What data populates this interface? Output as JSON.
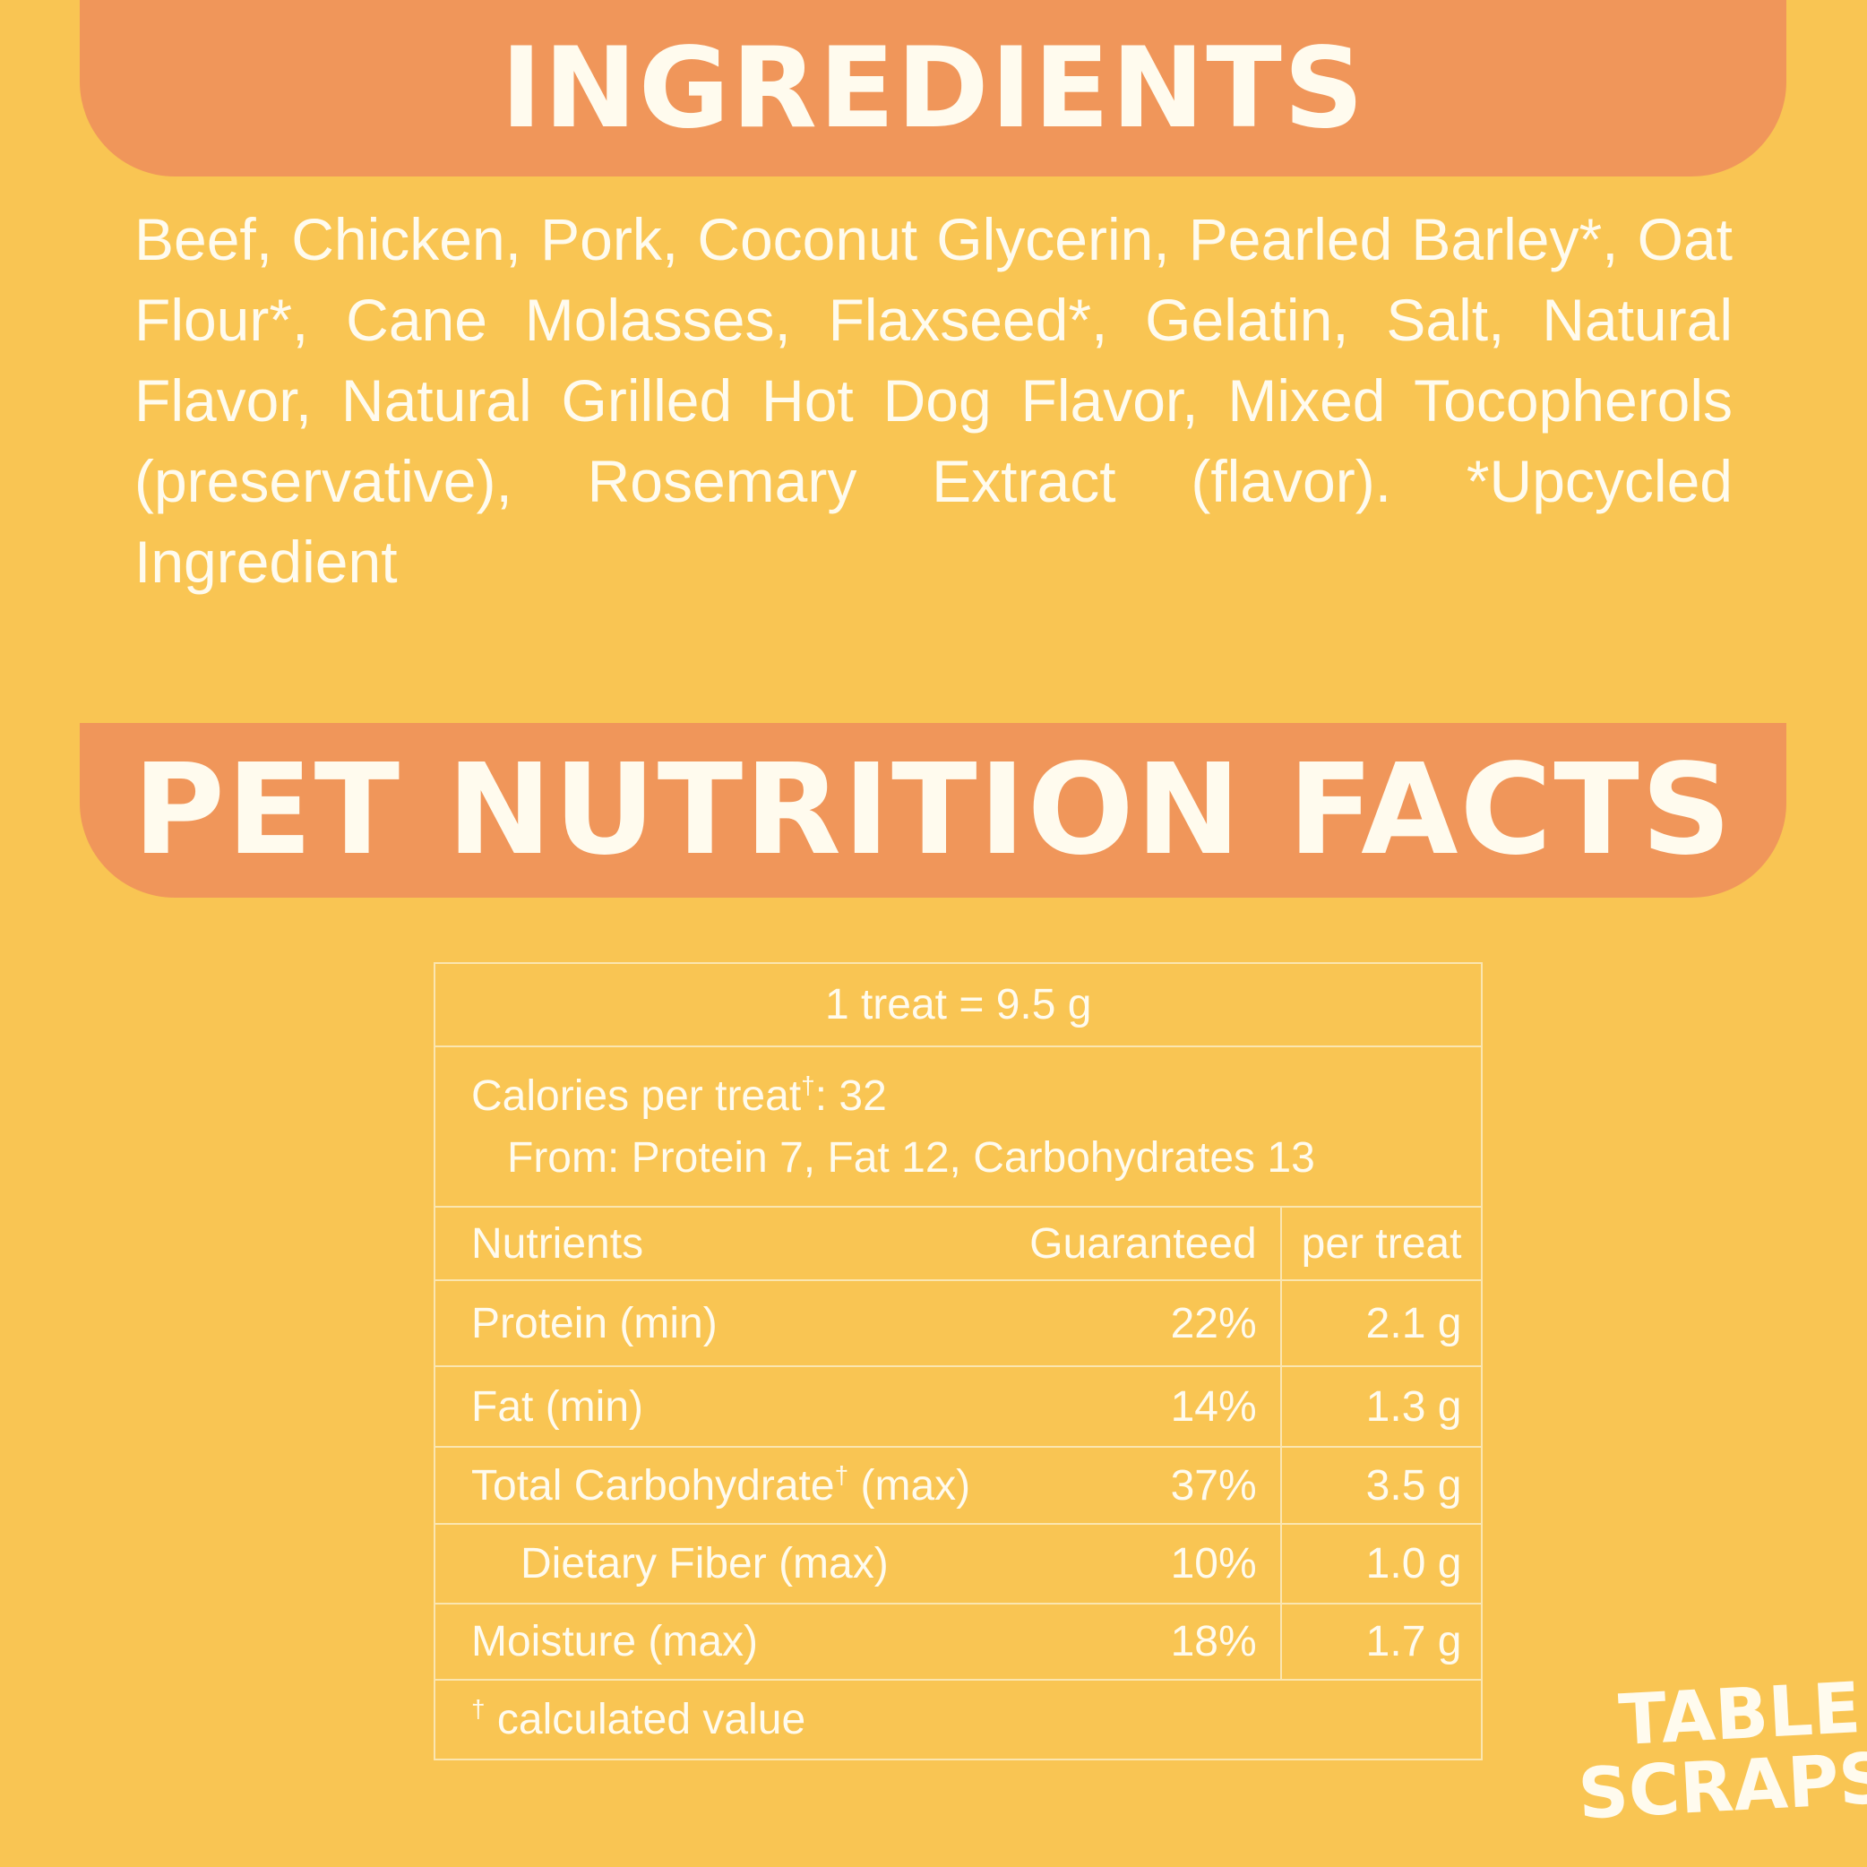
{
  "ingredients": {
    "title": "INGREDIENTS",
    "text": "Beef, Chicken, Pork, Coconut Glycerin, Pearled Barley*, Oat Flour*, Cane Molasses, Flaxseed*, Gelatin, Salt, Natural Flavor, Natural Grilled Hot Dog Flavor, Mixed Tocopherols (preservative), Rosemary Extract (flavor).  *Upcycled Ingredient"
  },
  "nutrition": {
    "title": "PET NUTRITION FACTS",
    "serving": "1 treat = 9.5 g",
    "calories": {
      "label": "Calories per treat",
      "note": "†",
      "value": ": 32"
    },
    "from": "From: Protein 7, Fat 12, Carbohydrates 13",
    "header": [
      "Nutrients",
      "Guaranteed",
      "per treat"
    ],
    "rows": [
      {
        "nutrient": "Protein (min)",
        "guaranteed": "22%",
        "per_treat": "2.1 g"
      },
      {
        "nutrient": "Fat (min)",
        "guaranteed": "14%",
        "per_treat": "1.3 g"
      },
      {
        "nutrient": "Total Carbohydrate",
        "note": "†",
        "qualifier": "(max)",
        "guaranteed": "37%",
        "per_treat": "3.5 g"
      },
      {
        "nutrient": "Dietary Fiber (max)",
        "guaranteed": "10%",
        "per_treat": "1.0 g"
      },
      {
        "nutrient": "Moisture (max)",
        "guaranteed": "18%",
        "per_treat": "1.7 g"
      }
    ],
    "footnote": {
      "note": "†",
      "text": "calculated value"
    }
  },
  "logo": {
    "line1": "TABLE",
    "line2": "SCRAPS",
    "mark": "®"
  }
}
